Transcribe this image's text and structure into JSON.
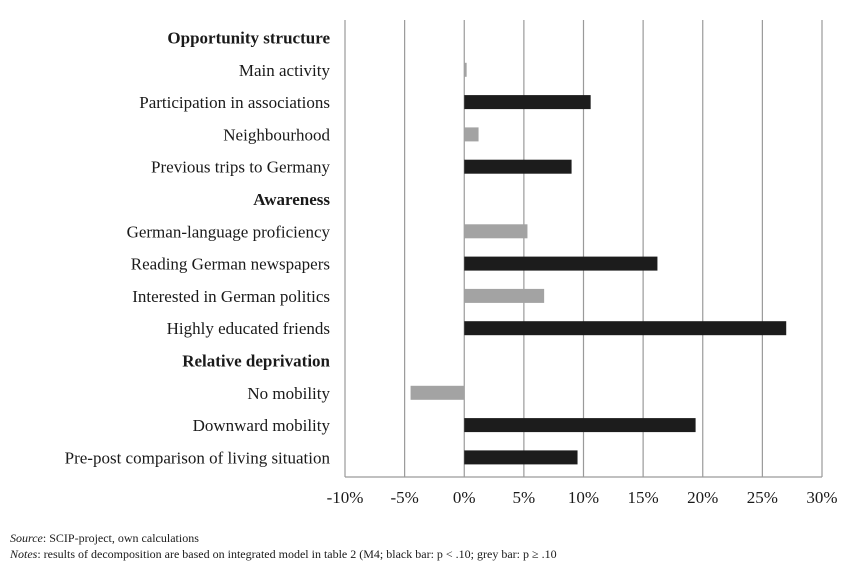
{
  "chart_data": {
    "type": "bar",
    "orientation": "horizontal",
    "xlim": [
      -10,
      30
    ],
    "x_ticks": [
      "-10%",
      "-5%",
      "0%",
      "5%",
      "10%",
      "15%",
      "20%",
      "25%",
      "30%"
    ],
    "grid": true,
    "rows": [
      {
        "label": "Opportunity structure",
        "header": true
      },
      {
        "label": "Main activity",
        "value": 0.2,
        "significant": false
      },
      {
        "label": "Participation in associations",
        "value": 10.6,
        "significant": true
      },
      {
        "label": "Neighbourhood",
        "value": 1.2,
        "significant": false
      },
      {
        "label": "Previous trips to Germany",
        "value": 9.0,
        "significant": true
      },
      {
        "label": "Awareness",
        "header": true
      },
      {
        "label": "German-language proficiency",
        "value": 5.3,
        "significant": false
      },
      {
        "label": "Reading German newspapers",
        "value": 16.2,
        "significant": true
      },
      {
        "label": "Interested in German politics",
        "value": 6.7,
        "significant": false
      },
      {
        "label": "Highly educated friends",
        "value": 27.0,
        "significant": true
      },
      {
        "label": "Relative deprivation",
        "header": true
      },
      {
        "label": "No mobility",
        "value": -4.5,
        "significant": false
      },
      {
        "label": "Downward mobility",
        "value": 19.4,
        "significant": true
      },
      {
        "label": "Pre-post comparison of living situation",
        "value": 9.5,
        "significant": true
      }
    ],
    "colors": {
      "significant": "#1c1c1c",
      "not_significant": "#a3a3a3",
      "grid": "#9a9a9a"
    }
  },
  "footer": {
    "source_label": "Source",
    "source_text": ": SCIP-project,  own calculations",
    "notes_label": "Notes",
    "notes_text": ": results of decomposition are based on integrated model in table 2 (M4; black bar: p < .10; grey bar: p ≥ .10"
  }
}
